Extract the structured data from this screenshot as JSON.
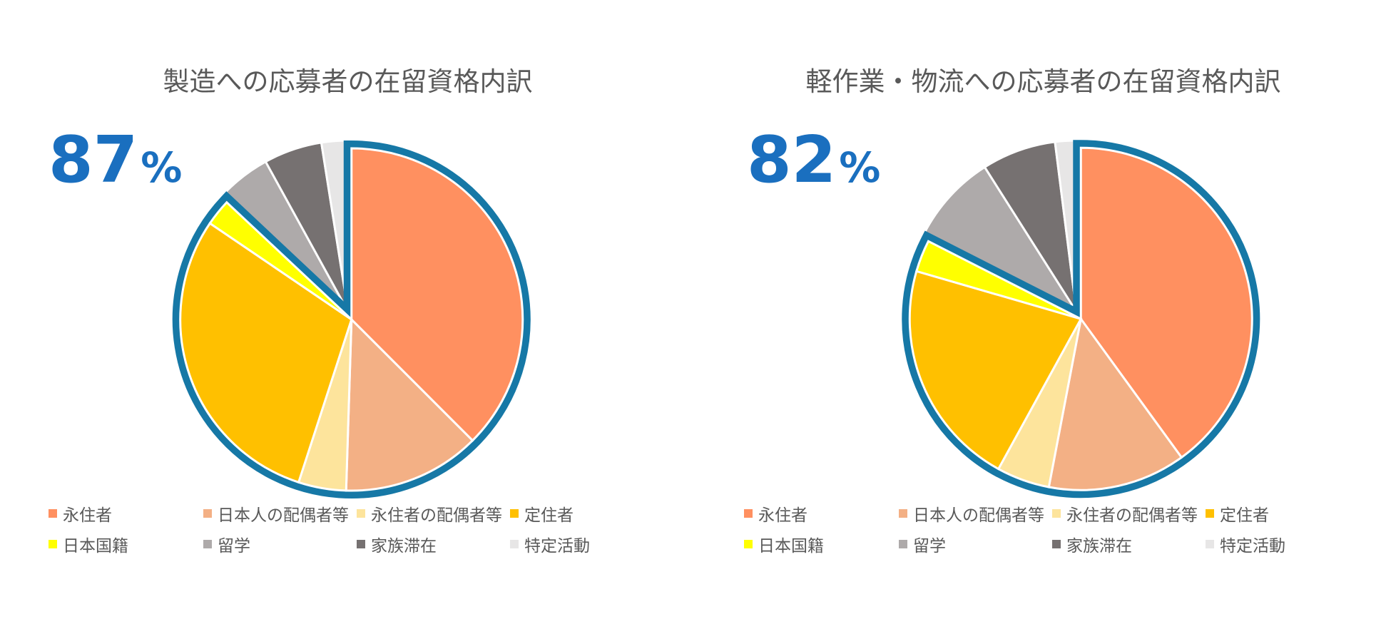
{
  "colors": {
    "永住者": "#ff9060",
    "日本人の配偶者等": "#f3b085",
    "永住者の配偶者等": "#fde49c",
    "定住者": "#ffc000",
    "日本国籍": "#ffff00",
    "留学": "#aeaaaa",
    "家族滞在": "#767171",
    "特定活動": "#e7e6e6",
    "highlight": "#1678a6",
    "percent": "#1a6fbf"
  },
  "chart_data": [
    {
      "type": "pie",
      "title": "製造への応募者の在留資格内訳",
      "highlight_percent": "87",
      "percent_unit": "%",
      "categories": [
        "永住者",
        "日本人の配偶者等",
        "永住者の配偶者等",
        "定住者",
        "日本国籍",
        "留学",
        "家族滞在",
        "特定活動"
      ],
      "values": [
        37.5,
        13.0,
        4.5,
        29.5,
        2.5,
        5.0,
        5.5,
        2.5
      ],
      "highlighted_categories": [
        "永住者",
        "日本人の配偶者等",
        "永住者の配偶者等",
        "定住者",
        "日本国籍"
      ],
      "legend_position": "bottom"
    },
    {
      "type": "pie",
      "title": "軽作業・物流への応募者の在留資格内訳",
      "highlight_percent": "82",
      "percent_unit": "%",
      "categories": [
        "永住者",
        "日本人の配偶者等",
        "永住者の配偶者等",
        "定住者",
        "日本国籍",
        "留学",
        "家族滞在",
        "特定活動"
      ],
      "values": [
        40.0,
        13.0,
        5.0,
        21.5,
        3.0,
        8.5,
        7.0,
        2.0
      ],
      "highlighted_categories": [
        "永住者",
        "日本人の配偶者等",
        "永住者の配偶者等",
        "定住者",
        "日本国籍"
      ],
      "legend_position": "bottom"
    }
  ]
}
